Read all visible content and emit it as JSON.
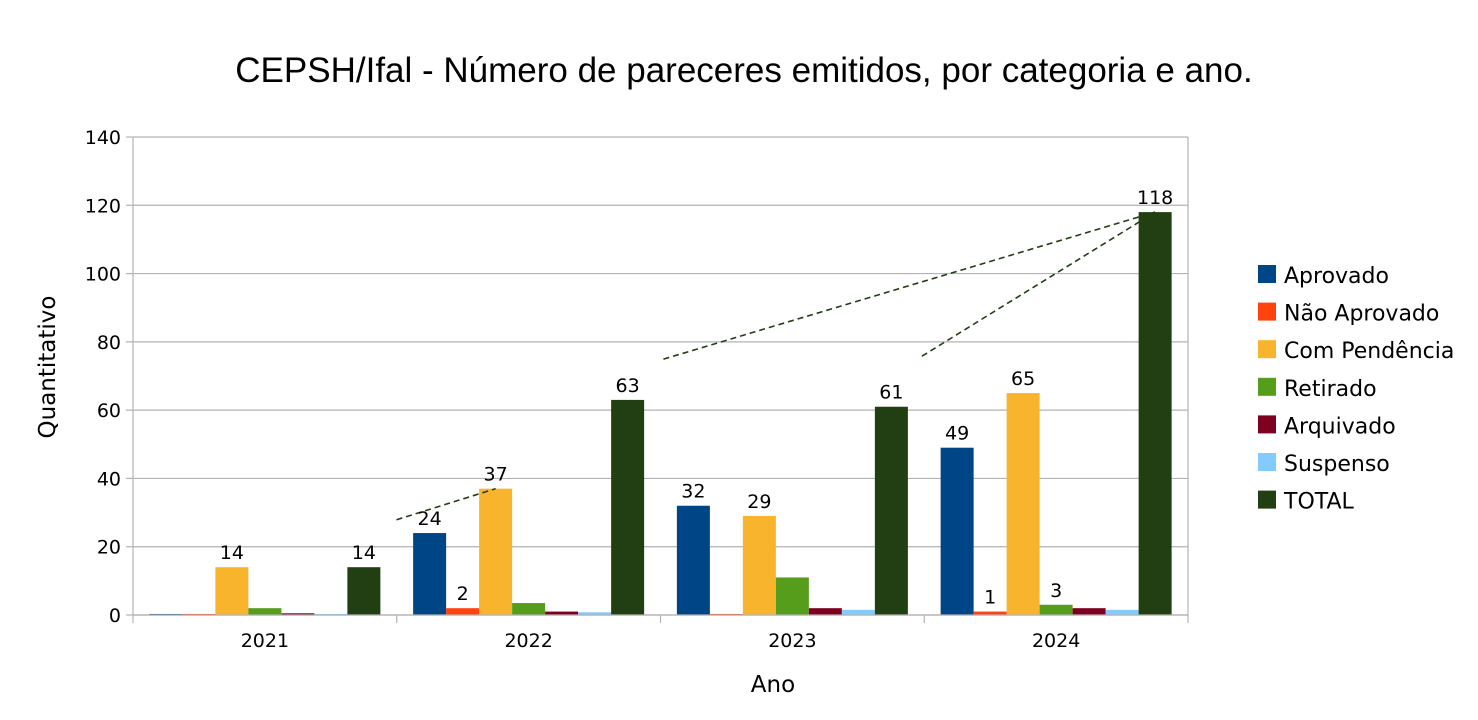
{
  "chart_data": {
    "type": "bar",
    "title": "CEPSH/Ifal - Número de pareceres emitidos, por categoria e ano.",
    "xlabel": "Ano",
    "ylabel": "Quantitativo",
    "ylim": [
      0,
      140
    ],
    "yticks": [
      0,
      20,
      40,
      60,
      80,
      100,
      120,
      140
    ],
    "grid": true,
    "legend_position": "right",
    "categories": [
      "2021",
      "2022",
      "2023",
      "2024"
    ],
    "series": [
      {
        "name": "Aprovado",
        "color": "#004586",
        "values": [
          0.3,
          24,
          32,
          49
        ],
        "labels": [
          null,
          "24",
          "32",
          "49"
        ]
      },
      {
        "name": "Não Aprovado",
        "color": "#ff420e",
        "values": [
          0.3,
          2,
          0.3,
          1
        ],
        "labels": [
          null,
          "2",
          null,
          "1"
        ]
      },
      {
        "name": "Com Pendência",
        "color": "#f9b42d",
        "values": [
          14,
          37,
          29,
          65
        ],
        "labels": [
          "14",
          "37",
          "29",
          "65"
        ]
      },
      {
        "name": "Retirado",
        "color": "#579d1c",
        "values": [
          2,
          3.5,
          11,
          3
        ],
        "labels": [
          null,
          null,
          null,
          "3"
        ]
      },
      {
        "name": "Arquivado",
        "color": "#7e0021",
        "values": [
          0.5,
          1,
          2,
          2
        ],
        "labels": [
          null,
          null,
          null,
          null
        ]
      },
      {
        "name": "Suspenso",
        "color": "#83caff",
        "values": [
          0.3,
          0.8,
          1.5,
          1.5
        ],
        "labels": [
          null,
          null,
          null,
          null
        ]
      },
      {
        "name": "TOTAL",
        "color": "#213f12",
        "values": [
          14,
          63,
          61,
          118
        ],
        "labels": [
          "14",
          "63",
          "61",
          "118"
        ]
      }
    ],
    "trend_lines": {
      "color": "#213f12",
      "style": "dashed",
      "segments": [
        [
          [
            "2021",
            "TOTAL"
          ],
          [
            "2022",
            "Com Pendência"
          ]
        ],
        [
          [
            "2022",
            "TOTAL"
          ],
          [
            "2024",
            "TOTAL"
          ]
        ],
        [
          [
            "2023",
            "TOTAL"
          ],
          [
            "2024",
            "TOTAL"
          ]
        ]
      ]
    }
  }
}
